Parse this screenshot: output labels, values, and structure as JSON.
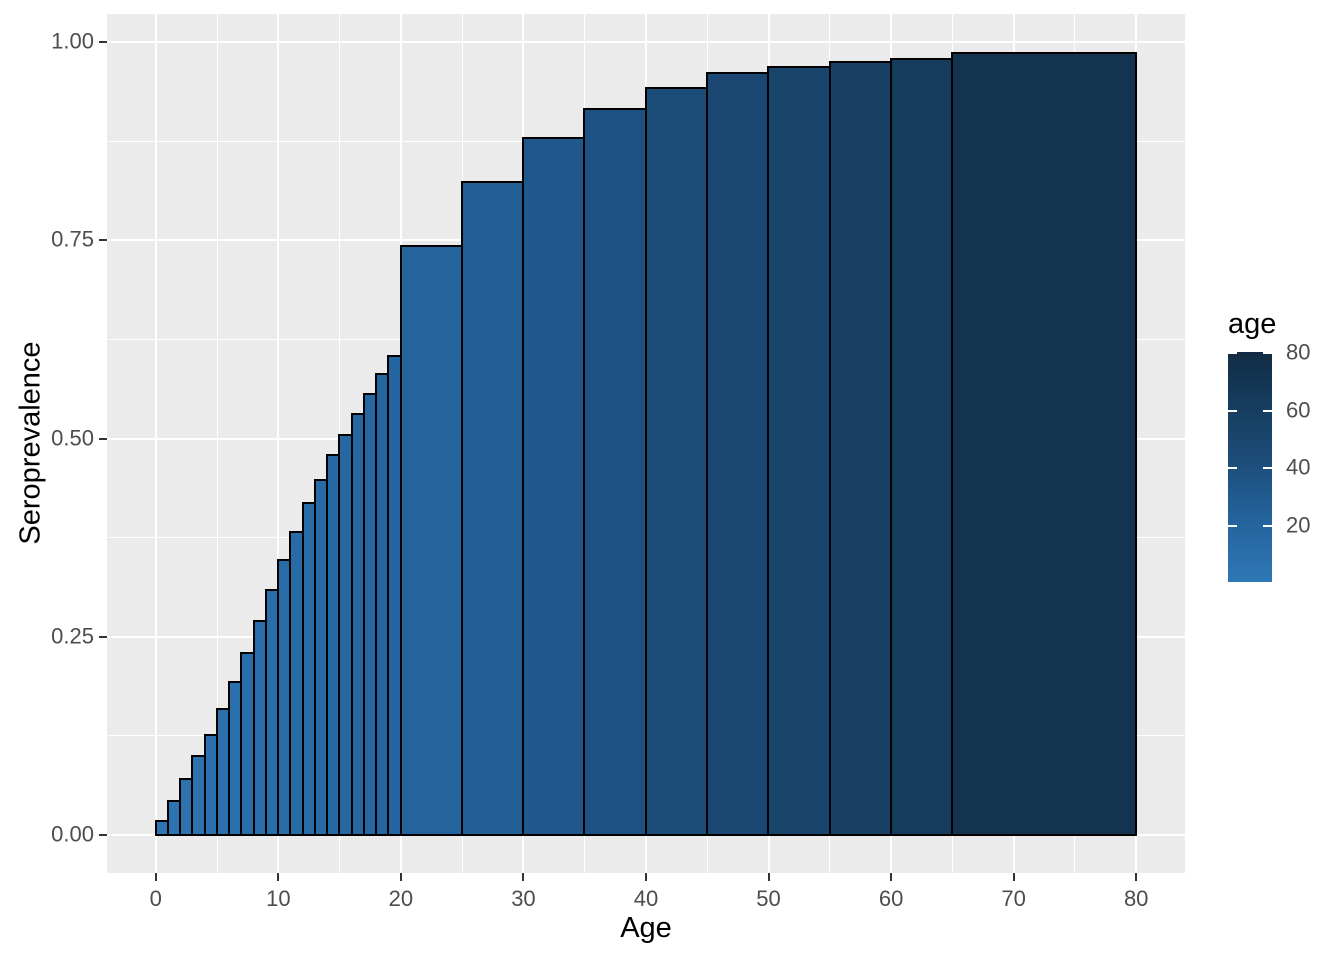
{
  "chart_data": {
    "type": "bar",
    "title": "",
    "xlabel": "Age",
    "ylabel": "Seroprevalence",
    "x_axis": {
      "ticks": [
        {
          "value": 0,
          "label": "0"
        },
        {
          "value": 10,
          "label": "10"
        },
        {
          "value": 20,
          "label": "20"
        },
        {
          "value": 30,
          "label": "30"
        },
        {
          "value": 40,
          "label": "40"
        },
        {
          "value": 50,
          "label": "50"
        },
        {
          "value": 60,
          "label": "60"
        },
        {
          "value": 70,
          "label": "70"
        },
        {
          "value": 80,
          "label": "80"
        }
      ],
      "minor": [
        5,
        15,
        25,
        35,
        45,
        55,
        65,
        75
      ],
      "range": [
        0,
        80
      ]
    },
    "y_axis": {
      "ticks": [
        {
          "value": 0.0,
          "label": "0.00"
        },
        {
          "value": 0.25,
          "label": "0.25"
        },
        {
          "value": 0.5,
          "label": "0.50"
        },
        {
          "value": 0.75,
          "label": "0.75"
        },
        {
          "value": 1.0,
          "label": "1.00"
        }
      ],
      "minor": [
        0.125,
        0.375,
        0.625,
        0.875
      ],
      "range": [
        0,
        1
      ]
    },
    "bars": [
      {
        "from": 0,
        "to": 1,
        "value": 0.017,
        "fill": "#2d75b2"
      },
      {
        "from": 1,
        "to": 2,
        "value": 0.043,
        "fill": "#2c74b1"
      },
      {
        "from": 2,
        "to": 3,
        "value": 0.07,
        "fill": "#2c73b0"
      },
      {
        "from": 3,
        "to": 4,
        "value": 0.099,
        "fill": "#2b72af"
      },
      {
        "from": 4,
        "to": 5,
        "value": 0.126,
        "fill": "#2b71ae"
      },
      {
        "from": 5,
        "to": 6,
        "value": 0.158,
        "fill": "#2b70ad"
      },
      {
        "from": 6,
        "to": 7,
        "value": 0.193,
        "fill": "#2a70ac"
      },
      {
        "from": 7,
        "to": 8,
        "value": 0.229,
        "fill": "#2a6fab"
      },
      {
        "from": 8,
        "to": 9,
        "value": 0.269,
        "fill": "#296eaa"
      },
      {
        "from": 9,
        "to": 10,
        "value": 0.309,
        "fill": "#296da9"
      },
      {
        "from": 10,
        "to": 11,
        "value": 0.346,
        "fill": "#296ca8"
      },
      {
        "from": 11,
        "to": 12,
        "value": 0.382,
        "fill": "#286ca7"
      },
      {
        "from": 12,
        "to": 13,
        "value": 0.418,
        "fill": "#286ba6"
      },
      {
        "from": 13,
        "to": 14,
        "value": 0.447,
        "fill": "#276aa5"
      },
      {
        "from": 14,
        "to": 15,
        "value": 0.479,
        "fill": "#2769a4"
      },
      {
        "from": 15,
        "to": 16,
        "value": 0.504,
        "fill": "#2768a3"
      },
      {
        "from": 16,
        "to": 17,
        "value": 0.53,
        "fill": "#2667a2"
      },
      {
        "from": 17,
        "to": 18,
        "value": 0.556,
        "fill": "#2667a1"
      },
      {
        "from": 18,
        "to": 19,
        "value": 0.581,
        "fill": "#2566a0"
      },
      {
        "from": 19,
        "to": 20,
        "value": 0.604,
        "fill": "#25659f"
      },
      {
        "from": 20,
        "to": 25,
        "value": 0.742,
        "fill": "#24639c"
      },
      {
        "from": 25,
        "to": 30,
        "value": 0.823,
        "fill": "#225d93"
      },
      {
        "from": 30,
        "to": 35,
        "value": 0.878,
        "fill": "#20588b"
      },
      {
        "from": 35,
        "to": 40,
        "value": 0.915,
        "fill": "#1e5282"
      },
      {
        "from": 40,
        "to": 45,
        "value": 0.942,
        "fill": "#1c4d79"
      },
      {
        "from": 45,
        "to": 50,
        "value": 0.96,
        "fill": "#1a4872"
      },
      {
        "from": 50,
        "to": 55,
        "value": 0.968,
        "fill": "#19446b"
      },
      {
        "from": 55,
        "to": 60,
        "value": 0.974,
        "fill": "#174064"
      },
      {
        "from": 60,
        "to": 65,
        "value": 0.978,
        "fill": "#163c5d"
      },
      {
        "from": 65,
        "to": 80,
        "value": 0.986,
        "fill": "#13334f"
      }
    ],
    "legend": {
      "title": "age",
      "ticks": [
        {
          "value": 80,
          "label": "80"
        },
        {
          "value": 60,
          "label": "60"
        },
        {
          "value": 40,
          "label": "40"
        },
        {
          "value": 20,
          "label": "20"
        }
      ],
      "gradient_top_to_bottom": [
        {
          "at": 0.0,
          "color": "#132b43"
        },
        {
          "at": 0.098,
          "color": "#13334f"
        },
        {
          "at": 0.475,
          "color": "#1c4d79"
        },
        {
          "at": 0.726,
          "color": "#24639c"
        },
        {
          "at": 1.0,
          "color": "#2e77b6"
        }
      ]
    },
    "grid": "on",
    "legend_position": "right"
  },
  "colors": {
    "background": "#ffffff",
    "panel_background": "#ebebeb",
    "gridline": "#ffffff",
    "bar_border": "#000000",
    "axis_tick": "#333333",
    "tick_label": "#4d4d4d",
    "axis_title": "#000000"
  }
}
